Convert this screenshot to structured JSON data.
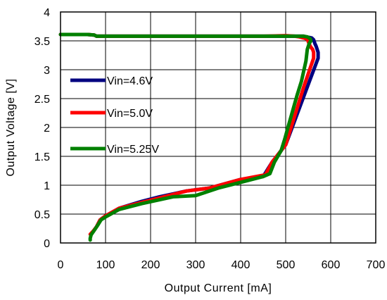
{
  "chart_data": {
    "type": "line",
    "xlabel": "Output Current [mA]",
    "ylabel": "Output Voltage [V]",
    "xlim": [
      0,
      700
    ],
    "ylim": [
      0,
      4
    ],
    "xticks": [
      "0",
      "100",
      "200",
      "300",
      "400",
      "500",
      "600",
      "700"
    ],
    "yticks": [
      "0",
      "0.5",
      "1",
      "1.5",
      "2",
      "2.5",
      "3",
      "3.5",
      "4"
    ],
    "grid": true,
    "legend_position": "left",
    "series": [
      {
        "name": "Vin=4.6V",
        "color": "#000080",
        "x": [
          0,
          60,
          75,
          80,
          200,
          450,
          540,
          548,
          552,
          558,
          562,
          565,
          568,
          570,
          572,
          572,
          548,
          500,
          470,
          450,
          400,
          330,
          280,
          220,
          180,
          130,
          100,
          88,
          80,
          73,
          68
        ],
        "y": [
          3.61,
          3.61,
          3.6,
          3.58,
          3.58,
          3.58,
          3.58,
          3.56,
          3.56,
          3.55,
          3.52,
          3.45,
          3.4,
          3.35,
          3.3,
          3.2,
          2.7,
          1.7,
          1.4,
          1.15,
          1.1,
          0.95,
          0.9,
          0.8,
          0.72,
          0.6,
          0.47,
          0.4,
          0.28,
          0.2,
          0.15
        ]
      },
      {
        "name": "Vin=5.0V",
        "color": "#ff0000",
        "x": [
          0,
          60,
          75,
          80,
          200,
          450,
          500,
          520,
          530,
          540,
          548,
          552,
          555,
          560,
          562,
          562,
          540,
          500,
          470,
          455,
          400,
          330,
          280,
          220,
          180,
          130,
          100,
          88,
          80,
          72,
          66
        ],
        "y": [
          3.61,
          3.61,
          3.6,
          3.58,
          3.58,
          3.58,
          3.59,
          3.58,
          3.57,
          3.55,
          3.53,
          3.45,
          3.4,
          3.35,
          3.3,
          3.2,
          2.7,
          1.7,
          1.4,
          1.18,
          1.1,
          0.95,
          0.9,
          0.78,
          0.7,
          0.6,
          0.47,
          0.4,
          0.28,
          0.2,
          0.15
        ]
      },
      {
        "name": "Vin=5.25V",
        "color": "#008000",
        "x": [
          0,
          60,
          75,
          80,
          200,
          450,
          540,
          548,
          552,
          555,
          556,
          552,
          548,
          545,
          535,
          525,
          505,
          498,
          490,
          475,
          465,
          450,
          400,
          350,
          300,
          250,
          180,
          130,
          100,
          90,
          82,
          75,
          68,
          66,
          66
        ],
        "y": [
          3.61,
          3.61,
          3.6,
          3.58,
          3.58,
          3.58,
          3.58,
          3.57,
          3.55,
          3.53,
          3.5,
          3.45,
          3.35,
          3.15,
          2.8,
          2.55,
          2.0,
          1.8,
          1.6,
          1.4,
          1.2,
          1.15,
          1.05,
          0.95,
          0.82,
          0.8,
          0.68,
          0.58,
          0.45,
          0.4,
          0.3,
          0.22,
          0.14,
          0.08,
          0.05
        ]
      }
    ]
  }
}
